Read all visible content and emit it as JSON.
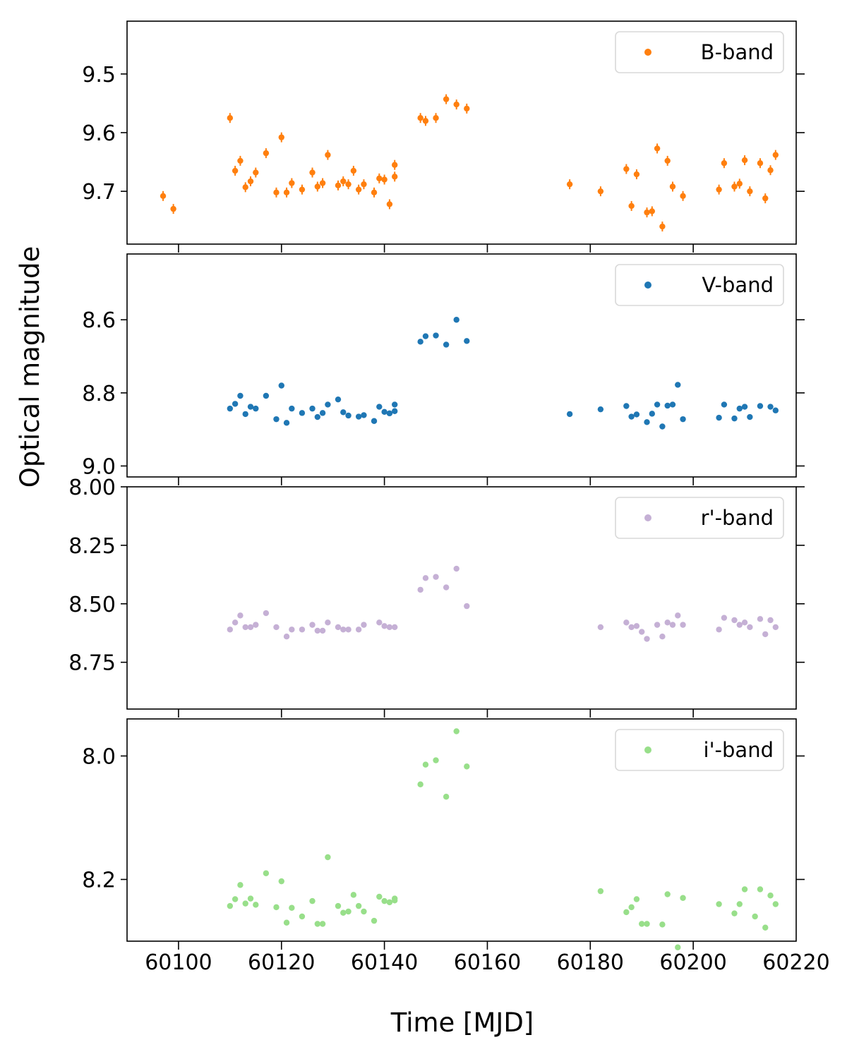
{
  "figure": {
    "xlabel": "Time [MJD]",
    "ylabel": "Optical magnitude"
  },
  "chart_data": [
    {
      "type": "scatter",
      "series": [
        {
          "name": "B-band",
          "color": "#ff7f0e",
          "error_bars": true,
          "x": [
            60097,
            60099,
            60110,
            60111,
            60112,
            60113,
            60114,
            60115,
            60117,
            60119,
            60120,
            60121,
            60122,
            60124,
            60126,
            60127,
            60128,
            60129,
            60131,
            60132,
            60133,
            60134,
            60135,
            60136,
            60138,
            60139,
            60140,
            60141,
            60142,
            60142,
            60147,
            60148,
            60150,
            60152,
            60154,
            60156,
            60176,
            60182,
            60187,
            60188,
            60189,
            60191,
            60192,
            60193,
            60194,
            60195,
            60196,
            60198,
            60205,
            60206,
            60208,
            60209,
            60210,
            60211,
            60213,
            60214,
            60215,
            60216
          ],
          "y": [
            9.708,
            9.73,
            9.575,
            9.665,
            9.648,
            9.693,
            9.683,
            9.668,
            9.635,
            9.702,
            9.608,
            9.702,
            9.686,
            9.697,
            9.668,
            9.692,
            9.686,
            9.638,
            9.69,
            9.683,
            9.688,
            9.665,
            9.697,
            9.688,
            9.702,
            9.678,
            9.68,
            9.722,
            9.675,
            9.655,
            9.575,
            9.58,
            9.575,
            9.543,
            9.552,
            9.559,
            9.688,
            9.7,
            9.662,
            9.725,
            9.671,
            9.736,
            9.734,
            9.627,
            9.76,
            9.648,
            9.692,
            9.708,
            9.697,
            9.652,
            9.692,
            9.687,
            9.647,
            9.7,
            9.652,
            9.712,
            9.664,
            9.638
          ]
        }
      ],
      "ylim": [
        9.79,
        9.41
      ],
      "yticks": [
        "9.5",
        "9.6",
        "9.7"
      ],
      "legend": "top-right"
    },
    {
      "type": "scatter",
      "series": [
        {
          "name": "V-band",
          "color": "#1f77b4",
          "x": [
            60110,
            60111,
            60112,
            60113,
            60114,
            60115,
            60117,
            60119,
            60120,
            60121,
            60122,
            60124,
            60126,
            60127,
            60128,
            60129,
            60131,
            60132,
            60133,
            60135,
            60136,
            60138,
            60139,
            60140,
            60141,
            60142,
            60142,
            60147,
            60148,
            60150,
            60152,
            60154,
            60156,
            60176,
            60182,
            60187,
            60188,
            60189,
            60191,
            60192,
            60193,
            60194,
            60195,
            60196,
            60197,
            60198,
            60205,
            60206,
            60208,
            60209,
            60210,
            60211,
            60213,
            60215,
            60216
          ],
          "y": [
            8.843,
            8.83,
            8.808,
            8.858,
            8.838,
            8.843,
            8.808,
            8.872,
            8.78,
            8.882,
            8.843,
            8.855,
            8.843,
            8.866,
            8.855,
            8.832,
            8.818,
            8.853,
            8.862,
            8.865,
            8.861,
            8.877,
            8.838,
            8.852,
            8.856,
            8.85,
            8.832,
            8.66,
            8.645,
            8.643,
            8.668,
            8.6,
            8.658,
            8.858,
            8.845,
            8.836,
            8.865,
            8.859,
            8.88,
            8.857,
            8.832,
            8.892,
            8.835,
            8.832,
            8.778,
            8.872,
            8.868,
            8.832,
            8.87,
            8.843,
            8.838,
            8.866,
            8.836,
            8.838,
            8.848
          ]
        }
      ],
      "ylim": [
        9.03,
        8.42
      ],
      "yticks": [
        "8.6",
        "8.8",
        "9.0"
      ],
      "legend": "top-right"
    },
    {
      "type": "scatter",
      "series": [
        {
          "name": "r'-band",
          "color": "#c5b0d5",
          "x": [
            60110,
            60111,
            60112,
            60113,
            60114,
            60115,
            60117,
            60119,
            60121,
            60122,
            60124,
            60126,
            60127,
            60128,
            60129,
            60131,
            60132,
            60133,
            60135,
            60136,
            60139,
            60140,
            60141,
            60142,
            60147,
            60148,
            60150,
            60152,
            60154,
            60156,
            60182,
            60187,
            60188,
            60189,
            60190,
            60191,
            60193,
            60194,
            60195,
            60196,
            60197,
            60198,
            60205,
            60206,
            60208,
            60209,
            60210,
            60211,
            60213,
            60214,
            60215,
            60216
          ],
          "y": [
            8.61,
            8.58,
            8.55,
            8.6,
            8.6,
            8.59,
            8.54,
            8.6,
            8.64,
            8.61,
            8.61,
            8.59,
            8.615,
            8.615,
            8.58,
            8.6,
            8.61,
            8.61,
            8.61,
            8.59,
            8.58,
            8.595,
            8.6,
            8.6,
            8.44,
            8.39,
            8.385,
            8.43,
            8.35,
            8.51,
            8.6,
            8.58,
            8.6,
            8.595,
            8.62,
            8.65,
            8.59,
            8.64,
            8.58,
            8.59,
            8.55,
            8.59,
            8.61,
            8.56,
            8.57,
            8.59,
            8.58,
            8.6,
            8.565,
            8.63,
            8.57,
            8.6
          ]
        }
      ],
      "ylim": [
        8.95,
        8.0
      ],
      "yticks": [
        "8.00",
        "8.25",
        "8.50",
        "8.75"
      ],
      "legend": "top-right"
    },
    {
      "type": "scatter",
      "series": [
        {
          "name": "i'-band",
          "color": "#98df8a",
          "x": [
            60110,
            60111,
            60112,
            60113,
            60114,
            60115,
            60117,
            60119,
            60120,
            60121,
            60122,
            60124,
            60126,
            60127,
            60128,
            60129,
            60131,
            60132,
            60133,
            60134,
            60135,
            60136,
            60138,
            60139,
            60140,
            60141,
            60142,
            60142,
            60147,
            60148,
            60150,
            60152,
            60154,
            60156,
            60182,
            60187,
            60188,
            60189,
            60190,
            60191,
            60194,
            60195,
            60197,
            60198,
            60205,
            60208,
            60209,
            60210,
            60212,
            60213,
            60214,
            60215,
            60216
          ],
          "y": [
            8.243,
            8.232,
            8.209,
            8.239,
            8.231,
            8.241,
            8.19,
            8.245,
            8.203,
            8.27,
            8.246,
            8.26,
            8.235,
            8.272,
            8.272,
            8.164,
            8.243,
            8.254,
            8.252,
            8.225,
            8.243,
            8.252,
            8.267,
            8.228,
            8.235,
            8.237,
            8.234,
            8.231,
            8.046,
            8.014,
            8.007,
            8.066,
            7.96,
            8.017,
            8.219,
            8.253,
            8.245,
            8.232,
            8.272,
            8.272,
            8.273,
            8.224,
            8.31,
            8.23,
            8.24,
            8.255,
            8.24,
            8.216,
            8.26,
            8.216,
            8.278,
            8.226,
            8.24
          ]
        }
      ],
      "ylim": [
        8.3,
        7.94
      ],
      "yticks": [
        "8.0",
        "8.2"
      ],
      "legend": "top-right"
    }
  ],
  "xaxis": {
    "xlim": [
      60090,
      60220
    ],
    "xticks": [
      "60100",
      "60120",
      "60140",
      "60160",
      "60180",
      "60200",
      "60220"
    ]
  }
}
